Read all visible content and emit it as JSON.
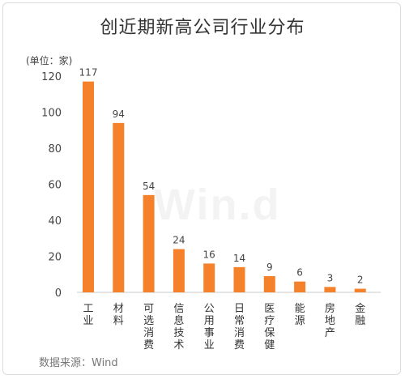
{
  "chart_data": {
    "type": "bar",
    "title": "创近期新高公司行业分布",
    "unit_label": "(单位：家)",
    "source": "数据来源：Wind",
    "watermark": "Win.d",
    "categories": [
      "工业",
      "材料",
      "可选消费",
      "信息技术",
      "公用事业",
      "日常消费",
      "医疗保健",
      "能源",
      "房地产",
      "金融"
    ],
    "values": [
      117,
      94,
      54,
      24,
      16,
      14,
      9,
      6,
      3,
      2
    ],
    "ylim": [
      0,
      120
    ],
    "yticks": [
      0,
      20,
      40,
      60,
      80,
      100,
      120
    ],
    "grid": false,
    "bar_color": "#F5822A",
    "axis_color": "#c8c8c8"
  }
}
